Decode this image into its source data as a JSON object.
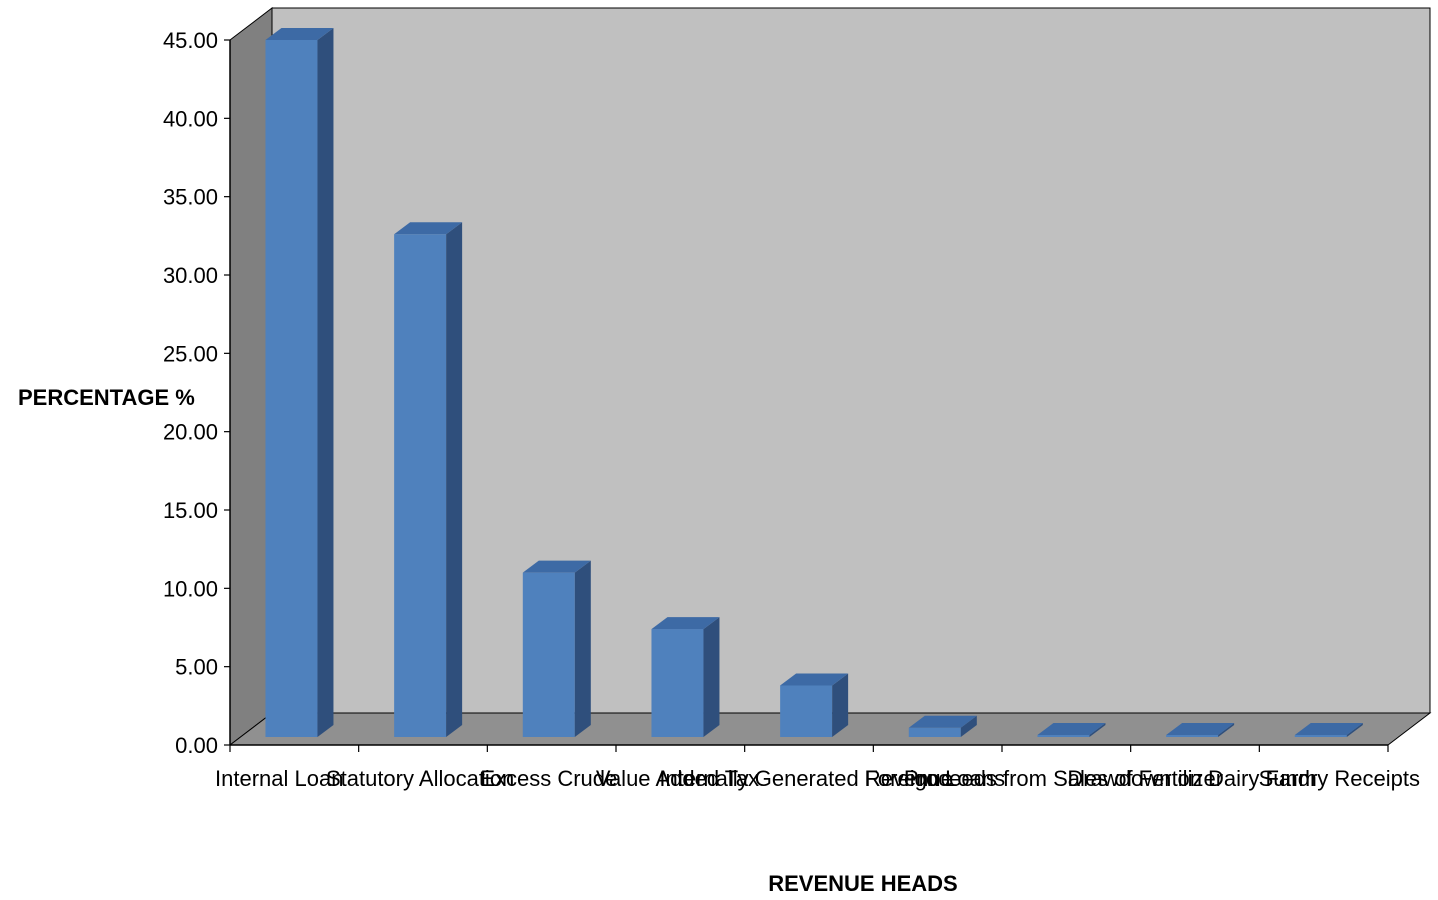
{
  "chart_data": {
    "type": "bar",
    "title": "",
    "xlabel": "REVENUE HEADS",
    "ylabel": "PERCENTAGE %",
    "ylim": [
      0,
      45
    ],
    "yticks": [
      "0.00",
      "5.00",
      "10.00",
      "15.00",
      "20.00",
      "25.00",
      "30.00",
      "35.00",
      "40.00",
      "45.00"
    ],
    "categories": [
      "Internal Loan",
      "Statutory Allocation",
      "Excess Crude",
      "Value Added Tax",
      "Internally Generated Revenue",
      "Foreign Loans",
      "Proceeds from Sales of Fertilizer",
      "Drawdown on Dairy Farm",
      "Sundry Receipts"
    ],
    "values": [
      45.0,
      32.6,
      11.0,
      7.4,
      3.8,
      1.1,
      0.6,
      0.1,
      0.1
    ],
    "grid": false,
    "legend": "none",
    "colors": {
      "bar_front": "#4f81bd",
      "bar_side": "#2f4f7c",
      "bar_top": "#3d6aa5",
      "back_wall": "#c0c0c0",
      "side_wall": "#808080",
      "floor": "#909090"
    }
  }
}
